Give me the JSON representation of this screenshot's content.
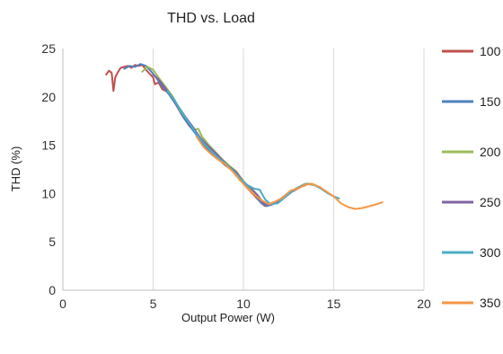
{
  "chart_data": {
    "type": "line",
    "title": "THD vs. Load",
    "xlabel": "Output Power (W)",
    "ylabel": "THD (%)",
    "xlim": [
      0,
      20
    ],
    "ylim": [
      0,
      25
    ],
    "xticks": [
      0,
      5,
      10,
      15,
      20
    ],
    "yticks": [
      0,
      5,
      10,
      15,
      20,
      25
    ],
    "grid": "vertical",
    "legend_position": "right",
    "series": [
      {
        "name": "100",
        "color": "#c0504d",
        "points": [
          [
            2.4,
            22.3
          ],
          [
            2.55,
            22.7
          ],
          [
            2.7,
            22.5
          ],
          [
            2.8,
            20.6
          ],
          [
            2.9,
            22.0
          ],
          [
            3.0,
            22.4
          ],
          [
            3.2,
            23.0
          ],
          [
            3.4,
            23.1
          ],
          [
            3.6,
            23.2
          ],
          [
            3.8,
            23.0
          ],
          [
            4.0,
            23.3
          ],
          [
            4.2,
            23.2
          ],
          [
            4.4,
            23.3
          ],
          [
            4.6,
            22.8
          ],
          [
            4.8,
            22.4
          ],
          [
            5.0,
            22.0
          ],
          [
            5.1,
            21.3
          ],
          [
            5.3,
            21.5
          ],
          [
            5.5,
            20.8
          ],
          [
            5.8,
            20.5
          ],
          [
            6.2,
            19.4
          ],
          [
            6.6,
            18.1
          ],
          [
            7.0,
            17.0
          ],
          [
            7.4,
            16.3
          ],
          [
            7.8,
            15.1
          ],
          [
            8.2,
            14.2
          ],
          [
            8.6,
            13.6
          ],
          [
            9.0,
            12.9
          ],
          [
            9.4,
            12.4
          ],
          [
            9.8,
            11.6
          ],
          [
            10.2,
            10.6
          ],
          [
            10.6,
            9.8
          ],
          [
            11.0,
            9.0
          ],
          [
            11.2,
            8.7
          ],
          [
            11.6,
            8.9
          ],
          [
            12.0,
            9.3
          ],
          [
            12.4,
            9.9
          ],
          [
            12.8,
            10.3
          ],
          [
            13.2,
            10.7
          ],
          [
            13.6,
            11.0
          ]
        ]
      },
      {
        "name": "150",
        "color": "#4f81bd",
        "points": [
          [
            3.4,
            22.9
          ],
          [
            3.7,
            23.2
          ],
          [
            4.0,
            23.1
          ],
          [
            4.3,
            23.4
          ],
          [
            4.6,
            23.2
          ],
          [
            4.9,
            22.6
          ],
          [
            5.2,
            21.9
          ],
          [
            5.5,
            21.1
          ],
          [
            5.9,
            20.2
          ],
          [
            6.3,
            19.1
          ],
          [
            6.7,
            17.8
          ],
          [
            7.1,
            16.8
          ],
          [
            7.5,
            15.8
          ],
          [
            7.9,
            14.9
          ],
          [
            8.3,
            14.1
          ],
          [
            8.7,
            13.4
          ],
          [
            9.1,
            12.8
          ],
          [
            9.5,
            12.2
          ],
          [
            9.9,
            11.3
          ],
          [
            10.3,
            10.5
          ],
          [
            10.7,
            9.7
          ],
          [
            11.0,
            9.0
          ],
          [
            11.3,
            8.7
          ],
          [
            11.7,
            9.0
          ],
          [
            12.1,
            9.5
          ],
          [
            12.5,
            10.1
          ],
          [
            12.9,
            10.5
          ],
          [
            13.3,
            10.9
          ],
          [
            13.7,
            11.0
          ]
        ]
      },
      {
        "name": "200",
        "color": "#9bbb59",
        "points": [
          [
            4.4,
            22.6
          ],
          [
            4.7,
            23.1
          ],
          [
            5.0,
            22.8
          ],
          [
            5.3,
            22.0
          ],
          [
            5.7,
            21.0
          ],
          [
            6.1,
            20.0
          ],
          [
            6.5,
            18.6
          ],
          [
            6.9,
            17.6
          ],
          [
            7.3,
            16.6
          ],
          [
            7.5,
            16.7
          ],
          [
            7.7,
            15.9
          ],
          [
            8.0,
            15.2
          ],
          [
            8.4,
            14.4
          ],
          [
            8.8,
            13.6
          ],
          [
            9.2,
            12.9
          ],
          [
            9.6,
            12.3
          ],
          [
            10.0,
            11.3
          ],
          [
            10.4,
            10.5
          ],
          [
            10.8,
            9.8
          ],
          [
            11.1,
            9.1
          ],
          [
            11.4,
            8.9
          ],
          [
            11.8,
            9.0
          ],
          [
            12.2,
            9.6
          ],
          [
            12.6,
            10.2
          ],
          [
            13.0,
            10.6
          ],
          [
            13.4,
            11.0
          ],
          [
            13.8,
            11.0
          ]
        ]
      },
      {
        "name": "250",
        "color": "#8064a2",
        "points": [
          [
            5.0,
            22.3
          ],
          [
            5.3,
            21.8
          ],
          [
            5.6,
            21.1
          ],
          [
            6.0,
            20.1
          ],
          [
            6.4,
            19.0
          ],
          [
            6.8,
            17.9
          ],
          [
            7.2,
            16.9
          ],
          [
            7.6,
            15.8
          ],
          [
            8.0,
            15.0
          ],
          [
            8.4,
            14.3
          ],
          [
            8.8,
            13.5
          ],
          [
            9.2,
            12.8
          ],
          [
            9.6,
            12.2
          ],
          [
            10.0,
            11.2
          ],
          [
            10.4,
            10.6
          ],
          [
            10.8,
            9.8
          ],
          [
            11.1,
            9.0
          ],
          [
            11.5,
            8.8
          ],
          [
            11.9,
            9.1
          ],
          [
            12.3,
            9.7
          ],
          [
            12.7,
            10.2
          ],
          [
            13.1,
            10.6
          ],
          [
            13.5,
            11.0
          ],
          [
            13.9,
            10.9
          ],
          [
            14.3,
            10.6
          ]
        ]
      },
      {
        "name": "300",
        "color": "#4bacc6",
        "points": [
          [
            5.8,
            20.6
          ],
          [
            6.2,
            19.6
          ],
          [
            6.6,
            18.4
          ],
          [
            7.0,
            17.3
          ],
          [
            7.4,
            16.2
          ],
          [
            7.8,
            15.2
          ],
          [
            8.2,
            14.4
          ],
          [
            8.6,
            13.7
          ],
          [
            9.0,
            13.1
          ],
          [
            9.4,
            12.4
          ],
          [
            9.8,
            11.6
          ],
          [
            10.2,
            10.9
          ],
          [
            10.6,
            10.5
          ],
          [
            10.9,
            10.4
          ],
          [
            11.2,
            9.4
          ],
          [
            11.5,
            8.9
          ],
          [
            11.9,
            9.0
          ],
          [
            12.3,
            9.6
          ],
          [
            12.7,
            10.2
          ],
          [
            13.1,
            10.7
          ],
          [
            13.5,
            11.0
          ],
          [
            13.9,
            10.9
          ],
          [
            14.3,
            10.5
          ],
          [
            14.7,
            10.0
          ],
          [
            15.0,
            9.7
          ],
          [
            15.3,
            9.5
          ]
        ]
      },
      {
        "name": "350",
        "color": "#f79646",
        "points": [
          [
            7.4,
            15.9
          ],
          [
            7.8,
            14.8
          ],
          [
            8.2,
            14.1
          ],
          [
            8.6,
            13.5
          ],
          [
            9.0,
            13.0
          ],
          [
            9.4,
            12.3
          ],
          [
            9.8,
            11.4
          ],
          [
            10.2,
            10.6
          ],
          [
            10.6,
            9.9
          ],
          [
            11.0,
            9.3
          ],
          [
            11.4,
            8.9
          ],
          [
            11.8,
            9.2
          ],
          [
            12.2,
            9.6
          ],
          [
            12.6,
            10.3
          ],
          [
            13.0,
            10.5
          ],
          [
            13.4,
            10.9
          ],
          [
            13.8,
            11.0
          ],
          [
            14.2,
            10.7
          ],
          [
            14.6,
            10.2
          ],
          [
            15.0,
            9.7
          ],
          [
            15.4,
            9.0
          ],
          [
            15.8,
            8.6
          ],
          [
            16.2,
            8.4
          ],
          [
            16.6,
            8.5
          ],
          [
            17.0,
            8.7
          ],
          [
            17.4,
            8.9
          ],
          [
            17.7,
            9.1
          ]
        ]
      }
    ]
  }
}
